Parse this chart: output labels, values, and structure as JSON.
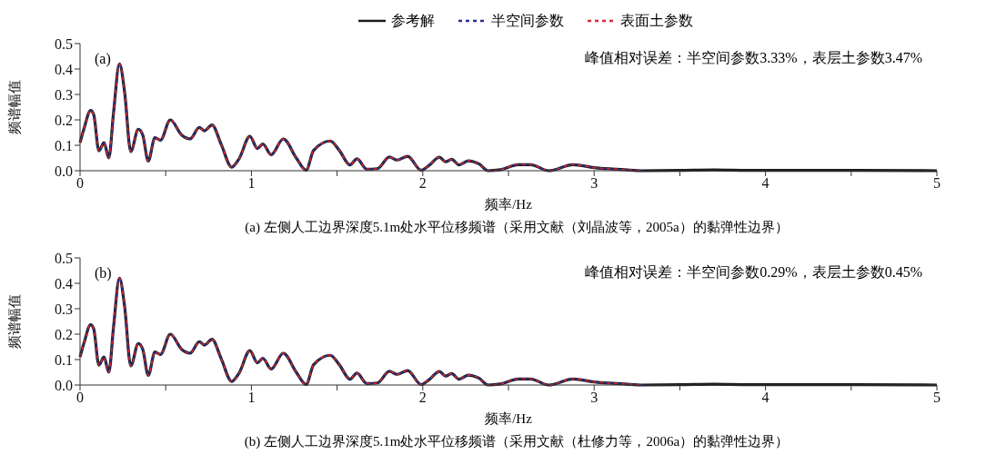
{
  "chart_data": [
    {
      "type": "line",
      "ylabel": "频谱幅值",
      "xlabel": "频率/Hz",
      "legend": "top",
      "grid": false,
      "xlim": [
        0,
        5
      ],
      "xticks": [
        0,
        {
          "value": 0.5,
          "label": null
        },
        1,
        {
          "value": 1.5,
          "label": null
        },
        2,
        {
          "value": 2.5,
          "label": null
        },
        3,
        {
          "value": 3.5,
          "label": null
        },
        4,
        {
          "value": 4.5,
          "label": null
        },
        5
      ],
      "ylim": [
        0,
        0.5
      ],
      "yticks": [
        {
          "value": 0,
          "label": "0.0"
        },
        0.1,
        0.2,
        0.3,
        0.4,
        0.5
      ],
      "annotations": [
        "(a)",
        "峰值相对误差：半空间参数3.33%，表层土参数3.47%",
        "(a) 左侧人工边界深度5.1m处水平位移频谱（采用文献（刘晶波等，2005a）的黏弹性边界）"
      ],
      "x": [
        0,
        0.023,
        0.062,
        0.08,
        0.11,
        0.14,
        0.168,
        0.195,
        0.23,
        0.26,
        0.296,
        0.34,
        0.366,
        0.398,
        0.437,
        0.469,
        0.527,
        0.593,
        0.642,
        0.696,
        0.726,
        0.77,
        0.823,
        0.885,
        0.929,
        0.991,
        1.035,
        1.067,
        1.115,
        1.186,
        1.262,
        1.319,
        1.363,
        1.46,
        1.513,
        1.575,
        1.616,
        1.673,
        1.735,
        1.805,
        1.85,
        1.912,
        1.99,
        2.035,
        2.097,
        2.133,
        2.168,
        2.212,
        2.265,
        2.327,
        2.381,
        2.452,
        2.558,
        2.629,
        2.735,
        2.877,
        3.0,
        3.178,
        3.284,
        3.5,
        3.7,
        3.9,
        4.5,
        5
      ],
      "series": [
        {
          "name": "参考解",
          "color": "#1a1a1a",
          "line_style": "solid",
          "values": [
            0.11,
            0.165,
            0.237,
            0.22,
            0.078,
            0.11,
            0.05,
            0.225,
            0.42,
            0.31,
            0.075,
            0.163,
            0.14,
            0.038,
            0.13,
            0.12,
            0.2,
            0.14,
            0.125,
            0.17,
            0.157,
            0.18,
            0.105,
            0.014,
            0.048,
            0.135,
            0.087,
            0.105,
            0.063,
            0.125,
            0.05,
            0.002,
            0.08,
            0.117,
            0.08,
            0.023,
            0.047,
            0.006,
            0.008,
            0.054,
            0.042,
            0.057,
            0.002,
            0.02,
            0.053,
            0.035,
            0.045,
            0.023,
            0.039,
            0.027,
            0.0,
            0.004,
            0.024,
            0.024,
            0.0,
            0.024,
            0.012,
            0.004,
            0.0,
            0.001,
            0.003,
            0.001,
            0.001,
            0.0
          ]
        },
        {
          "name": "半空间参数",
          "color": "#2b2f8f",
          "line_style": "dashed",
          "values": [
            0.11,
            0.165,
            0.237,
            0.22,
            0.078,
            0.11,
            0.05,
            0.225,
            0.42,
            0.31,
            0.075,
            0.163,
            0.14,
            0.038,
            0.13,
            0.12,
            0.2,
            0.14,
            0.125,
            0.17,
            0.157,
            0.18,
            0.105,
            0.014,
            0.048,
            0.135,
            0.087,
            0.105,
            0.063,
            0.125,
            0.05,
            0.002,
            0.08,
            0.117,
            0.08,
            0.023,
            0.047,
            0.006,
            0.008,
            0.054,
            0.042,
            0.057,
            0.002,
            0.02,
            0.053,
            0.035,
            0.045,
            0.023,
            0.039,
            0.027,
            0.0,
            0.004,
            0.024,
            0.024,
            0.0,
            0.024,
            0.012,
            0.004,
            0.0,
            null,
            null,
            null,
            null,
            null
          ]
        },
        {
          "name": "表面土参数",
          "color": "#d42a3c",
          "line_style": "dashed",
          "values": [
            0.11,
            0.165,
            0.237,
            0.22,
            0.078,
            0.11,
            0.05,
            0.225,
            0.42,
            0.31,
            0.075,
            0.163,
            0.14,
            0.038,
            0.13,
            0.12,
            0.2,
            0.14,
            0.125,
            0.17,
            0.157,
            0.18,
            0.105,
            0.014,
            0.048,
            0.135,
            0.087,
            0.105,
            0.063,
            0.125,
            0.05,
            0.002,
            0.08,
            0.117,
            0.08,
            0.023,
            0.047,
            0.006,
            0.008,
            0.054,
            0.042,
            0.057,
            0.002,
            0.02,
            0.053,
            0.035,
            0.045,
            0.023,
            0.039,
            0.027,
            0.0,
            0.004,
            0.024,
            0.024,
            0.0,
            0.024,
            0.012,
            0.004,
            0.0,
            null,
            null,
            null,
            null,
            null
          ]
        }
      ]
    },
    {
      "type": "line",
      "ylabel": "频谱幅值",
      "xlabel": "频率/Hz",
      "grid": false,
      "xlim": [
        0,
        5
      ],
      "xticks": [
        0,
        {
          "value": 0.5,
          "label": null
        },
        1,
        {
          "value": 1.5,
          "label": null
        },
        2,
        {
          "value": 2.5,
          "label": null
        },
        3,
        {
          "value": 3.5,
          "label": null
        },
        4,
        {
          "value": 4.5,
          "label": null
        },
        5
      ],
      "ylim": [
        0,
        0.5
      ],
      "yticks": [
        {
          "value": 0,
          "label": "0.0"
        },
        0.1,
        0.2,
        0.3,
        0.4,
        0.5
      ],
      "annotations": [
        "(b)",
        "峰值相对误差：半空间参数0.29%，表层土参数0.45%",
        "(b) 左侧人工边界深度5.1m处水平位移频谱（采用文献（杜修力等，2006a）的黏弹性边界）"
      ],
      "x": [
        0,
        0.023,
        0.062,
        0.08,
        0.11,
        0.14,
        0.168,
        0.195,
        0.23,
        0.26,
        0.296,
        0.34,
        0.366,
        0.398,
        0.437,
        0.469,
        0.527,
        0.593,
        0.642,
        0.696,
        0.726,
        0.77,
        0.823,
        0.885,
        0.929,
        0.991,
        1.035,
        1.067,
        1.115,
        1.186,
        1.262,
        1.319,
        1.363,
        1.46,
        1.513,
        1.575,
        1.616,
        1.673,
        1.735,
        1.805,
        1.85,
        1.912,
        1.99,
        2.035,
        2.097,
        2.133,
        2.168,
        2.212,
        2.265,
        2.327,
        2.381,
        2.452,
        2.558,
        2.629,
        2.735,
        2.877,
        3.0,
        3.178,
        3.284,
        3.5,
        3.7,
        3.9,
        4.5,
        5
      ],
      "series": [
        {
          "color": "#1a1a1a",
          "line_style": "solid",
          "values": [
            0.11,
            0.165,
            0.237,
            0.22,
            0.078,
            0.11,
            0.05,
            0.225,
            0.42,
            0.31,
            0.075,
            0.163,
            0.14,
            0.038,
            0.13,
            0.12,
            0.2,
            0.14,
            0.125,
            0.17,
            0.157,
            0.18,
            0.105,
            0.014,
            0.048,
            0.135,
            0.087,
            0.105,
            0.063,
            0.125,
            0.05,
            0.002,
            0.08,
            0.117,
            0.08,
            0.023,
            0.047,
            0.006,
            0.008,
            0.054,
            0.042,
            0.057,
            0.002,
            0.02,
            0.053,
            0.035,
            0.045,
            0.023,
            0.039,
            0.027,
            0.0,
            0.004,
            0.024,
            0.024,
            0.0,
            0.024,
            0.012,
            0.004,
            0.0,
            0.001,
            0.003,
            0.001,
            0.001,
            0.0
          ]
        },
        {
          "color": "#2b2f8f",
          "line_style": "dashed",
          "values": [
            0.11,
            0.165,
            0.237,
            0.22,
            0.078,
            0.11,
            0.05,
            0.225,
            0.42,
            0.31,
            0.075,
            0.163,
            0.14,
            0.038,
            0.13,
            0.12,
            0.2,
            0.14,
            0.125,
            0.17,
            0.157,
            0.18,
            0.105,
            0.014,
            0.048,
            0.135,
            0.087,
            0.105,
            0.063,
            0.125,
            0.05,
            0.002,
            0.08,
            0.117,
            0.08,
            0.023,
            0.047,
            0.006,
            0.008,
            0.054,
            0.042,
            0.057,
            0.002,
            0.02,
            0.053,
            0.035,
            0.045,
            0.023,
            0.039,
            0.027,
            0.0,
            0.004,
            0.024,
            0.024,
            0.0,
            0.024,
            0.012,
            0.004,
            0.0,
            null,
            null,
            null,
            null,
            null
          ]
        },
        {
          "color": "#d42a3c",
          "line_style": "dashed",
          "values": [
            0.11,
            0.165,
            0.237,
            0.22,
            0.078,
            0.11,
            0.05,
            0.225,
            0.42,
            0.31,
            0.075,
            0.163,
            0.14,
            0.038,
            0.13,
            0.12,
            0.2,
            0.14,
            0.125,
            0.17,
            0.157,
            0.18,
            0.105,
            0.014,
            0.048,
            0.135,
            0.087,
            0.105,
            0.063,
            0.125,
            0.05,
            0.002,
            0.08,
            0.117,
            0.08,
            0.023,
            0.047,
            0.006,
            0.008,
            0.054,
            0.042,
            0.057,
            0.002,
            0.02,
            0.053,
            0.035,
            0.045,
            0.023,
            0.039,
            0.027,
            0.0,
            0.004,
            0.024,
            0.024,
            0.0,
            0.024,
            0.012,
            0.004,
            0.0,
            null,
            null,
            null,
            null,
            null
          ]
        }
      ]
    }
  ]
}
